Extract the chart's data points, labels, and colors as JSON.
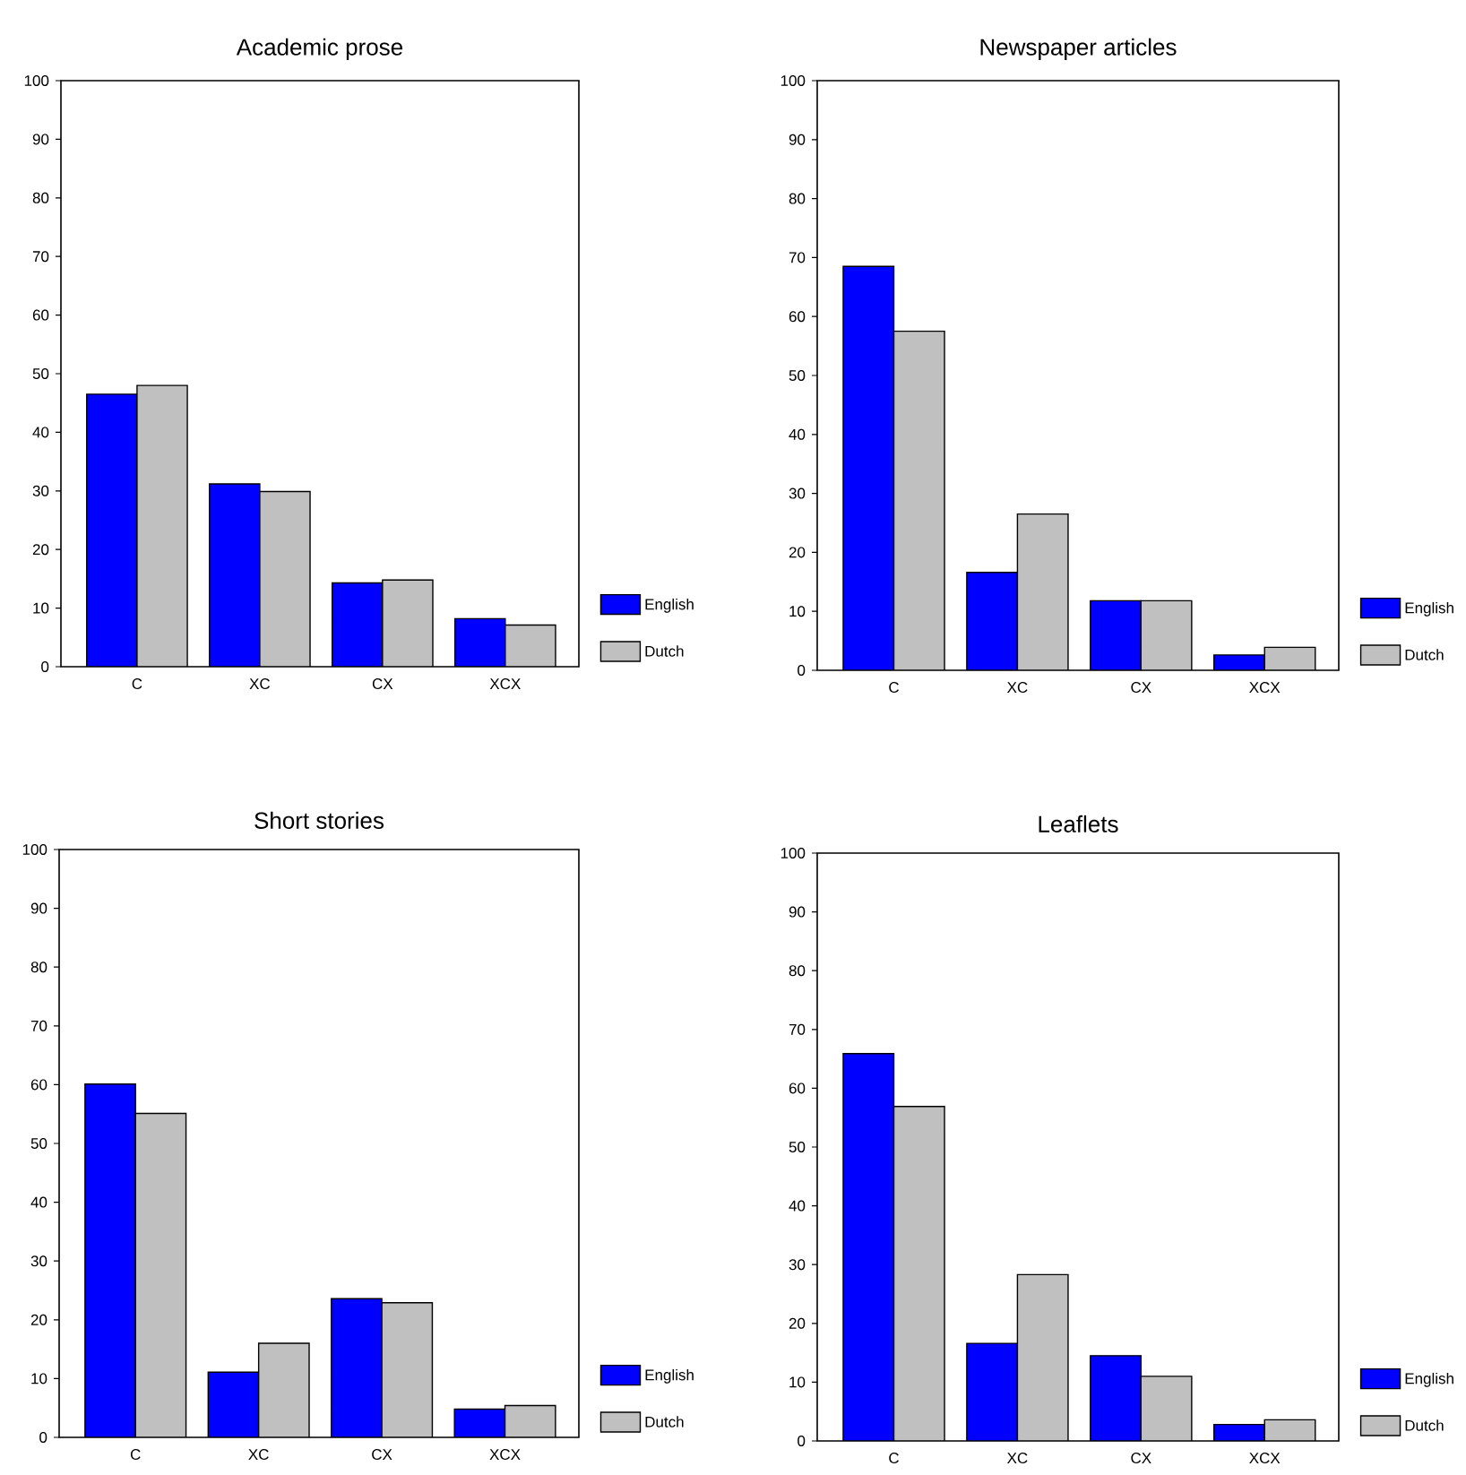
{
  "chart_data": [
    {
      "type": "bar",
      "title": "Academic prose",
      "categories": [
        "C",
        "XC",
        "CX",
        "XCX"
      ],
      "ylim": [
        0,
        100
      ],
      "yticks": [
        0,
        10,
        20,
        30,
        40,
        50,
        60,
        70,
        80,
        90,
        100
      ],
      "legend": "right",
      "series": [
        {
          "name": "English",
          "color": "#0000ff",
          "values": [
            46.5,
            31.2,
            14.3,
            8.2
          ]
        },
        {
          "name": "Dutch",
          "color": "#c0c0c0",
          "values": [
            48.0,
            29.9,
            14.8,
            7.1
          ]
        }
      ]
    },
    {
      "type": "bar",
      "title": "Newspaper articles",
      "categories": [
        "C",
        "XC",
        "CX",
        "XCX"
      ],
      "ylim": [
        0,
        100
      ],
      "yticks": [
        0,
        10,
        20,
        30,
        40,
        50,
        60,
        70,
        80,
        90,
        100
      ],
      "legend": "right",
      "series": [
        {
          "name": "English",
          "color": "#0000ff",
          "values": [
            68.5,
            16.6,
            11.8,
            2.6
          ]
        },
        {
          "name": "Dutch",
          "color": "#c0c0c0",
          "values": [
            57.5,
            26.5,
            11.8,
            3.9
          ]
        }
      ]
    },
    {
      "type": "bar",
      "title": "Short stories",
      "categories": [
        "C",
        "XC",
        "CX",
        "XCX"
      ],
      "ylim": [
        0,
        100
      ],
      "yticks": [
        0,
        10,
        20,
        30,
        40,
        50,
        60,
        70,
        80,
        90,
        100
      ],
      "legend": "right",
      "series": [
        {
          "name": "English",
          "color": "#0000ff",
          "values": [
            60.1,
            11.1,
            23.6,
            4.8
          ]
        },
        {
          "name": "Dutch",
          "color": "#c0c0c0",
          "values": [
            55.1,
            16.0,
            22.9,
            5.4
          ]
        }
      ]
    },
    {
      "type": "bar",
      "title": "Leaflets",
      "categories": [
        "C",
        "XC",
        "CX",
        "XCX"
      ],
      "ylim": [
        0,
        100
      ],
      "yticks": [
        0,
        10,
        20,
        30,
        40,
        50,
        60,
        70,
        80,
        90,
        100
      ],
      "legend": "right",
      "series": [
        {
          "name": "English",
          "color": "#0000ff",
          "values": [
            65.9,
            16.6,
            14.5,
            2.8
          ]
        },
        {
          "name": "Dutch",
          "color": "#c0c0c0",
          "values": [
            56.9,
            28.3,
            11.0,
            3.6
          ]
        }
      ]
    }
  ]
}
